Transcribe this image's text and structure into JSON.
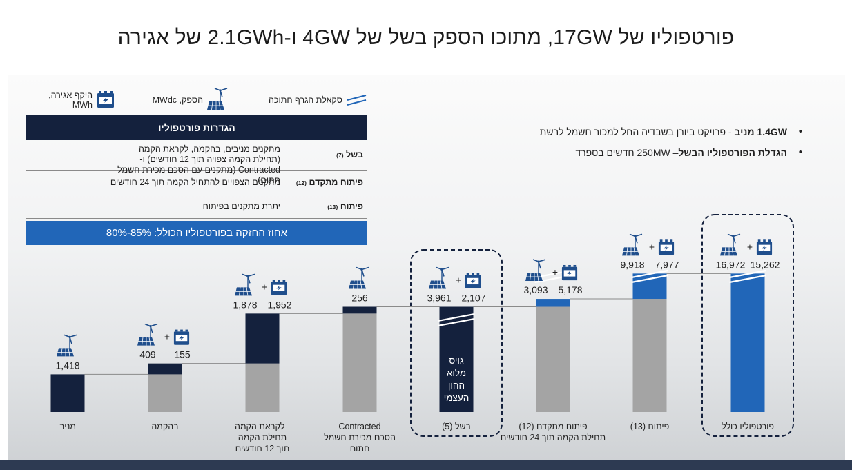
{
  "title": "פורטפוליו של 17GW, מתוכו הספק בשל של 4GW ו-2.1GWh של אגירה",
  "legend": {
    "scale_label": "סקאלת הגרף חתוכה",
    "capacity_label": "הספק, MWdc",
    "storage_label": "היקף אגירה, MWh"
  },
  "definitions": {
    "header": "הגדרות פורטפוליו",
    "rows": [
      {
        "label": "בשל",
        "ref": "(7)",
        "description": "מתקנים מניבים, בהקמה, לקראת הקמה (תחילת הקמה צפויה תוך 12 חודשים) ו-Contracted (מתקנים עם הסכם מכירת חשמל חתום)"
      },
      {
        "label": "פיתוח מתקדם",
        "ref": "(12)",
        "description": "מתקנים הצפויים להתחיל הקמה תוך 24 חודשים"
      },
      {
        "label": "פיתוח",
        "ref": "(13)",
        "description": "יתרת מתקנים בפיתוח"
      }
    ],
    "holding": "אחוז החזקה בפורטפוליו הכולל: 85%-80%"
  },
  "bullets": [
    {
      "bold": "1.4GW מניב",
      "text": " - פרויקט ביורן בשבדיה החל למכור חשמל לרשת"
    },
    {
      "bold": "הגדלת הפורטפוליו הבשל",
      "text": "– 250MW חדשים בספרד"
    }
  ],
  "colors": {
    "navy": "#14213d",
    "gray": "#a4a4a4",
    "blue": "#2166b8",
    "icon_blue": "#1f4e8c"
  },
  "chart_data": {
    "type": "bar",
    "subtype": "waterfall",
    "scale_broken": true,
    "categories": [
      "מניב",
      "בהקמה",
      "לקראת הקמה - תחילת הקמה תוך 12 חודשים",
      "Contracted הסכם מכירת חשמל חתום",
      "בשל (5)",
      "פיתוח מתקדם (12) תחילת הקמה תוך 24 חודשים",
      "פיתוח (13)",
      "פורטפוליו כולל"
    ],
    "category_lines": [
      [
        "מניב"
      ],
      [
        "בהקמה"
      ],
      [
        "לקראת הקמה -",
        "תחילת הקמה",
        "תוך 12 חודשים"
      ],
      [
        "Contracted",
        "הסכם מכירת חשמל",
        "חתום"
      ],
      [
        "בשל (5)"
      ],
      [
        "פיתוח מתקדם (12)",
        "תחילת הקמה תוך 24 חודשים"
      ],
      [
        "פיתוח (13)"
      ],
      [
        "פורטפוליו כולל"
      ]
    ],
    "capacity_mwdc": [
      1418,
      409,
      1878,
      256,
      3961,
      3093,
      9918,
      16972
    ],
    "capacity_labels": [
      "1,418",
      "409",
      "1,878",
      "256",
      "3,961",
      "3,093",
      "9,918",
      "16,972"
    ],
    "storage_mwh": [
      null,
      155,
      1952,
      null,
      2107,
      5178,
      7977,
      15262
    ],
    "storage_labels": [
      "",
      "155",
      "1,952",
      "",
      "2,107",
      "5,178",
      "7,977",
      "15,262"
    ],
    "kinds": [
      "increment",
      "increment",
      "increment",
      "increment",
      "subtotal",
      "increment",
      "increment",
      "total"
    ],
    "highlighted": [
      false,
      false,
      false,
      false,
      true,
      false,
      false,
      true
    ],
    "subtotal_note": [
      "גויס",
      "מלוא",
      "ההון",
      "העצמי"
    ]
  }
}
